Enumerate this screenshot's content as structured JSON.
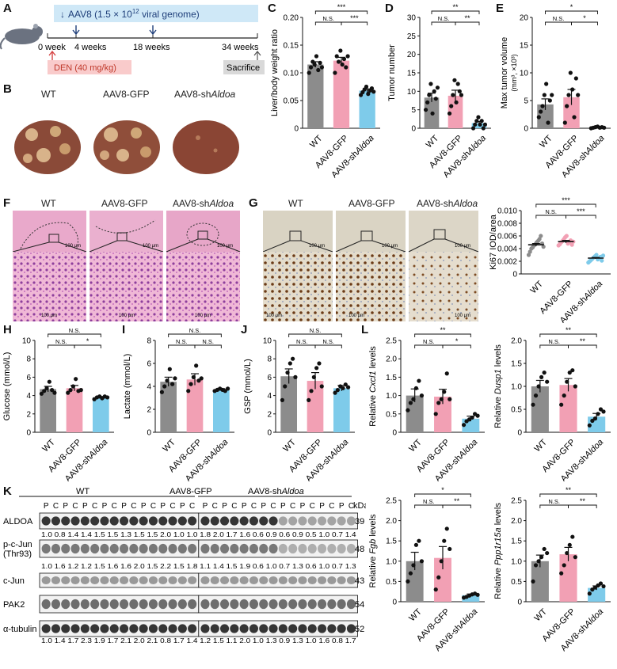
{
  "panel_letters": [
    "A",
    "B",
    "C",
    "D",
    "E",
    "F",
    "G",
    "H",
    "I",
    "J",
    "K",
    "L"
  ],
  "timeline": {
    "virus_label": "AAV8 (1.5 × 10",
    "virus_exp": "12",
    "virus_unit": " viral genome)",
    "ticks": [
      "0 week",
      "4 weeks",
      "18 weeks",
      "34 weeks"
    ],
    "den_label": "DEN (40 mg/kg)",
    "sacrifice_label": "Sacrifice"
  },
  "groups": [
    "WT",
    "AAV8-GFP",
    "AAV8-shAldoa"
  ],
  "group_parts": {
    "prefix": "AAV8-sh",
    "gene": "Aldoa"
  },
  "colors": {
    "wt": "#8c8c8c",
    "gfp": "#f2a0b4",
    "sh": "#7ecbea"
  },
  "scale_bar": "100 μm",
  "sig": {
    "ns": "N.S.",
    "s1": "*",
    "s2": "**",
    "s3": "***"
  },
  "chart_data": [
    {
      "id": "C",
      "type": "bar",
      "ylabel": "Liver/body weight ratio",
      "ylim": [
        0,
        0.2
      ],
      "ticks": [
        "0",
        "0.05",
        "0.10",
        "0.15",
        "0.20"
      ],
      "values": [
        0.115,
        0.122,
        0.068
      ],
      "errors": [
        0.005,
        0.006,
        0.003
      ],
      "points": [
        [
          0.1,
          0.11,
          0.12,
          0.115,
          0.13,
          0.105,
          0.118,
          0.11
        ],
        [
          0.1,
          0.13,
          0.12,
          0.14,
          0.115,
          0.125,
          0.11,
          0.13
        ],
        [
          0.06,
          0.065,
          0.07,
          0.075,
          0.062,
          0.068,
          0.072,
          0.066
        ]
      ],
      "sig": [
        {
          "a": 0,
          "b": 2,
          "t": "***",
          "l": 0
        },
        {
          "a": 0,
          "b": 1,
          "t": "N.S.",
          "l": 1
        },
        {
          "a": 1,
          "b": 2,
          "t": "***",
          "l": 1
        }
      ]
    },
    {
      "id": "D",
      "type": "bar",
      "ylabel": "Tumor number",
      "ylim": [
        0,
        30
      ],
      "ticks": [
        "0",
        "5",
        "10",
        "15",
        "20",
        "25",
        "30"
      ],
      "values": [
        8.3,
        8.8,
        1.4
      ],
      "errors": [
        1.2,
        1.5,
        0.4
      ],
      "points": [
        [
          5,
          7,
          9,
          12,
          4,
          10,
          8,
          11
        ],
        [
          4,
          6,
          9,
          13,
          7,
          12,
          10,
          9
        ],
        [
          0,
          1,
          2,
          3,
          1,
          2,
          0,
          1
        ]
      ],
      "sig": [
        {
          "a": 0,
          "b": 2,
          "t": "**",
          "l": 0
        },
        {
          "a": 0,
          "b": 1,
          "t": "N.S.",
          "l": 1
        },
        {
          "a": 1,
          "b": 2,
          "t": "**",
          "l": 1
        }
      ]
    },
    {
      "id": "E",
      "type": "bar",
      "ylabel": "Max tumor volume",
      "ylabel_unit": "(mm³, ×10³)",
      "ylim": [
        0,
        20
      ],
      "ticks": [
        "0",
        "5",
        "10",
        "15",
        "20"
      ],
      "values": [
        4.3,
        5.6,
        0.2
      ],
      "errors": [
        1.0,
        1.4,
        0.1
      ],
      "points": [
        [
          2,
          3,
          4,
          6,
          8,
          1,
          5,
          6
        ],
        [
          1,
          4,
          6,
          10,
          7,
          2,
          9,
          6
        ],
        [
          0,
          0.1,
          0.2,
          0.3,
          0.1,
          0.2,
          0.1
        ]
      ],
      "sig": [
        {
          "a": 0,
          "b": 2,
          "t": "*",
          "l": 0
        },
        {
          "a": 0,
          "b": 1,
          "t": "N.S.",
          "l": 1
        },
        {
          "a": 1,
          "b": 2,
          "t": "*",
          "l": 1
        }
      ]
    },
    {
      "id": "G",
      "type": "scatter",
      "ylabel": "Ki67 IOD/area",
      "ylim": [
        0,
        0.01
      ],
      "ticks": [
        "0",
        "0.002",
        "0.004",
        "0.006",
        "0.008",
        "0.010"
      ],
      "values": [
        0.0046,
        0.0051,
        0.0025
      ],
      "errors": [
        0.0002,
        0.0002,
        0.0001
      ],
      "points": [
        [
          0.003,
          0.0035,
          0.004,
          0.0042,
          0.0045,
          0.0047,
          0.005,
          0.0052,
          0.0055,
          0.006,
          0.0048,
          0.0043
        ],
        [
          0.0045,
          0.0047,
          0.005,
          0.0052,
          0.0055,
          0.0058,
          0.006,
          0.0048,
          0.005,
          0.0053,
          0.0046,
          0.0051
        ],
        [
          0.0018,
          0.002,
          0.0022,
          0.0024,
          0.0026,
          0.0028,
          0.003,
          0.0023,
          0.0025,
          0.0027,
          0.0021,
          0.0029
        ]
      ],
      "sig": [
        {
          "a": 0,
          "b": 2,
          "t": "***",
          "l": 0
        },
        {
          "a": 0,
          "b": 1,
          "t": "N.S.",
          "l": 1
        },
        {
          "a": 1,
          "b": 2,
          "t": "***",
          "l": 1
        }
      ]
    },
    {
      "id": "H",
      "type": "bar",
      "ylabel": "Glucose (mmol/L)",
      "ylim": [
        0,
        10
      ],
      "ticks": [
        "0",
        "2",
        "4",
        "6",
        "8",
        "10"
      ],
      "values": [
        4.7,
        4.8,
        3.8
      ],
      "errors": [
        0.3,
        0.3,
        0.1
      ],
      "points": [
        [
          4.2,
          4.5,
          4.8,
          5.5,
          4.6,
          4.3
        ],
        [
          4.3,
          4.6,
          5.0,
          5.8,
          4.5,
          4.6
        ],
        [
          3.6,
          3.8,
          3.9,
          3.7,
          3.9,
          3.8
        ]
      ],
      "sig": [
        {
          "a": 0,
          "b": 2,
          "t": "N.S.",
          "l": 0
        },
        {
          "a": 0,
          "b": 1,
          "t": "N.S.",
          "l": 1
        },
        {
          "a": 1,
          "b": 2,
          "t": "*",
          "l": 1
        }
      ]
    },
    {
      "id": "I",
      "type": "bar",
      "ylabel": "Lactate (mmol/L)",
      "ylim": [
        0,
        8
      ],
      "ticks": [
        "0",
        "2",
        "4",
        "6",
        "8"
      ],
      "values": [
        4.4,
        4.6,
        3.7
      ],
      "errors": [
        0.4,
        0.5,
        0.1
      ],
      "points": [
        [
          3.5,
          4.0,
          4.5,
          5.5,
          4.2,
          4.7
        ],
        [
          3.6,
          4.2,
          4.8,
          5.8,
          4.5,
          4.7
        ],
        [
          3.6,
          3.7,
          3.8,
          3.7,
          3.6,
          3.8
        ]
      ],
      "sig": [
        {
          "a": 0,
          "b": 2,
          "t": "N.S.",
          "l": 0
        },
        {
          "a": 0,
          "b": 1,
          "t": "N.S.",
          "l": 1
        },
        {
          "a": 1,
          "b": 2,
          "t": "N.S.",
          "l": 1
        }
      ]
    },
    {
      "id": "J",
      "type": "bar",
      "ylabel": "GSP (mmol/L)",
      "ylim": [
        0,
        10
      ],
      "ticks": [
        "0",
        "2",
        "4",
        "6",
        "8",
        "10"
      ],
      "values": [
        6.1,
        5.6,
        4.8
      ],
      "errors": [
        0.8,
        0.9,
        0.3
      ],
      "points": [
        [
          3.5,
          5.0,
          6.5,
          7.5,
          8.0,
          6.0
        ],
        [
          3.5,
          4.5,
          6.0,
          7.0,
          7.5,
          5.0
        ],
        [
          4.3,
          4.6,
          5.0,
          4.8,
          5.2,
          4.9
        ]
      ],
      "sig": [
        {
          "a": 0,
          "b": 2,
          "t": "N.S.",
          "l": 0
        },
        {
          "a": 0,
          "b": 1,
          "t": "N.S.",
          "l": 1
        },
        {
          "a": 1,
          "b": 2,
          "t": "N.S.",
          "l": 1
        }
      ]
    },
    {
      "id": "L1",
      "type": "bar",
      "ylabel": "Relative",
      "ylabel_gene": "Cxcl1",
      "ylabel_tail": "levels",
      "ylim": [
        0,
        2.5
      ],
      "ticks": [
        "0",
        "0.5",
        "1.0",
        "1.5",
        "2.0",
        "2.5"
      ],
      "values": [
        1.0,
        0.97,
        0.37
      ],
      "errors": [
        0.18,
        0.2,
        0.07
      ],
      "points": [
        [
          0.6,
          0.8,
          0.9,
          1.2,
          1.4,
          1.0
        ],
        [
          0.5,
          0.8,
          0.9,
          1.1,
          1.6,
          0.9
        ],
        [
          0.2,
          0.3,
          0.35,
          0.4,
          0.5,
          0.45
        ]
      ],
      "sig": [
        {
          "a": 0,
          "b": 2,
          "t": "**",
          "l": 0
        },
        {
          "a": 0,
          "b": 1,
          "t": "N.S.",
          "l": 1
        },
        {
          "a": 1,
          "b": 2,
          "t": "*",
          "l": 1
        }
      ]
    },
    {
      "id": "L2",
      "type": "bar",
      "ylabel": "Relative",
      "ylabel_gene": "Dusp1",
      "ylabel_tail": "levels",
      "ylim": [
        0,
        2.0
      ],
      "ticks": [
        "0",
        "0.5",
        "1.0",
        "1.5",
        "2.0"
      ],
      "values": [
        1.0,
        1.03,
        0.34
      ],
      "errors": [
        0.13,
        0.14,
        0.07
      ],
      "points": [
        [
          0.6,
          0.8,
          1.0,
          1.2,
          1.3,
          1.1
        ],
        [
          0.6,
          0.8,
          1.1,
          1.3,
          1.35,
          1.0
        ],
        [
          0.15,
          0.25,
          0.3,
          0.4,
          0.5,
          0.45
        ]
      ],
      "sig": [
        {
          "a": 0,
          "b": 2,
          "t": "**",
          "l": 0
        },
        {
          "a": 0,
          "b": 1,
          "t": "N.S.",
          "l": 1
        },
        {
          "a": 1,
          "b": 2,
          "t": "**",
          "l": 1
        }
      ]
    },
    {
      "id": "L3",
      "type": "bar",
      "ylabel": "Relative",
      "ylabel_gene": "Fgb",
      "ylabel_tail": "levels",
      "ylim": [
        0,
        2.5
      ],
      "ticks": [
        "0",
        "0.5",
        "1.0",
        "1.5",
        "2.0",
        "2.5"
      ],
      "values": [
        1.0,
        1.08,
        0.16
      ],
      "errors": [
        0.22,
        0.28,
        0.03
      ],
      "points": [
        [
          0.5,
          0.7,
          0.9,
          1.4,
          1.5,
          1.0
        ],
        [
          0.3,
          0.6,
          1.0,
          1.5,
          1.8,
          1.3
        ],
        [
          0.1,
          0.12,
          0.15,
          0.18,
          0.2,
          0.17
        ]
      ],
      "sig": [
        {
          "a": 0,
          "b": 2,
          "t": "*",
          "l": 0
        },
        {
          "a": 0,
          "b": 1,
          "t": "N.S.",
          "l": 1
        },
        {
          "a": 1,
          "b": 2,
          "t": "**",
          "l": 1
        }
      ]
    },
    {
      "id": "L4",
      "type": "bar",
      "ylabel": "Relative",
      "ylabel_gene": "Ppp1r15a",
      "ylabel_tail": "levels",
      "ylim": [
        0,
        2.5
      ],
      "ticks": [
        "0",
        "0.5",
        "1.0",
        "1.5",
        "2.0",
        "2.5"
      ],
      "values": [
        1.0,
        1.17,
        0.34
      ],
      "errors": [
        0.15,
        0.17,
        0.05
      ],
      "points": [
        [
          0.5,
          0.9,
          1.0,
          1.1,
          1.3,
          1.2
        ],
        [
          0.7,
          0.9,
          1.2,
          1.4,
          1.6,
          1.1
        ],
        [
          0.2,
          0.3,
          0.35,
          0.4,
          0.45,
          0.38
        ]
      ],
      "sig": [
        {
          "a": 0,
          "b": 2,
          "t": "**",
          "l": 0
        },
        {
          "a": 0,
          "b": 1,
          "t": "N.S.",
          "l": 1
        },
        {
          "a": 1,
          "b": 2,
          "t": "**",
          "l": 1
        }
      ]
    }
  ],
  "western": {
    "groups": [
      "WT",
      "AAV8-GFP",
      "AAV8-shAldoa"
    ],
    "lane_labels": [
      "P",
      "C",
      "P",
      "C",
      "P",
      "C",
      "P",
      "C",
      "P",
      "C",
      "P",
      "C",
      "P",
      "C",
      "P",
      "C"
    ],
    "kda_label": "kDa",
    "rows": [
      {
        "name": "ALDOA",
        "kda": "39"
      },
      {
        "name": "p-c-Jun",
        "name2": "(Thr93)",
        "kda": "48"
      },
      {
        "name": "c-Jun",
        "kda": "43"
      },
      {
        "name": "PAK2",
        "kda": "54"
      },
      {
        "name": "α-tubulin",
        "kda": "52"
      }
    ],
    "quant_pjun": "1.0 0.8 1.4 1.4 1.5 1.5 1.3 1.5 1.5 2.0 1.0 1.0 1.8 2.0 1.7 1.6   0.6 0.9 0.6 0.9 0.5 1.0 0.7 1.4",
    "quant_cjun": "1.0 1.6 1.2 1.2 1.5 1.6 1.6 2.0 1.5 2.2 1.5 1.8 1.1 1.4 1.5 1.9   0.6 1.0 0.7 1.3 0.6 1.0 0.7 1.3",
    "quant_pak2": "1.0 1.4 1.7 2.3 1.9 1.7 2.1 2.0 2.1 0.8 1.7 1.4 1.2 1.5 1.1 2.0   1.0 1.3 0.9 1.3 1.0 1.6 0.8 1.7"
  }
}
